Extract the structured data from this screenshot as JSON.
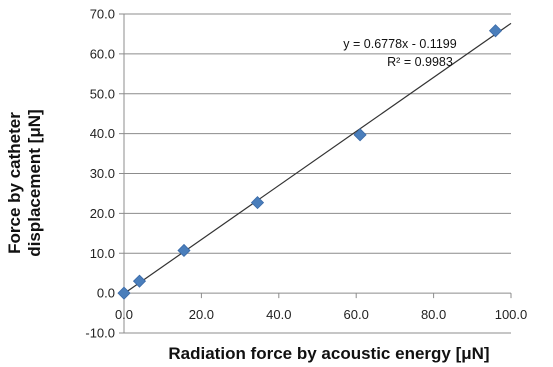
{
  "chart_data": {
    "type": "scatter",
    "xlabel": "Radiation force by acoustic energy [μN]",
    "ylabel": [
      "Force by catheter",
      "displacement [μN]"
    ],
    "xlim": [
      0,
      100
    ],
    "ylim": [
      -10,
      70
    ],
    "x_ticks": [
      0,
      20,
      40,
      60,
      80,
      100
    ],
    "x_tick_labels": [
      "0.0",
      "20.0",
      "40.0",
      "60.0",
      "80.0",
      "100.0"
    ],
    "y_ticks": [
      -10,
      0,
      10,
      20,
      30,
      40,
      50,
      60,
      70
    ],
    "y_tick_labels": [
      "-10.0",
      "0.0",
      "10.0",
      "20.0",
      "30.0",
      "40.0",
      "50.0",
      "60.0",
      "70.0"
    ],
    "grid": "horizontal",
    "series": [
      {
        "x": [
          0,
          4,
          15.5,
          34.5,
          61,
          96
        ],
        "y": [
          0,
          3,
          10.7,
          22.7,
          39.7,
          65.8
        ],
        "color": "#4a7ebb",
        "marker": "diamond"
      }
    ],
    "trendline": {
      "slope": 0.6778,
      "intercept": -0.1199,
      "color": "#333333",
      "equation": "y = 0.6778x - 0.1199",
      "r_squared_label": "R² = 0.9983"
    }
  }
}
